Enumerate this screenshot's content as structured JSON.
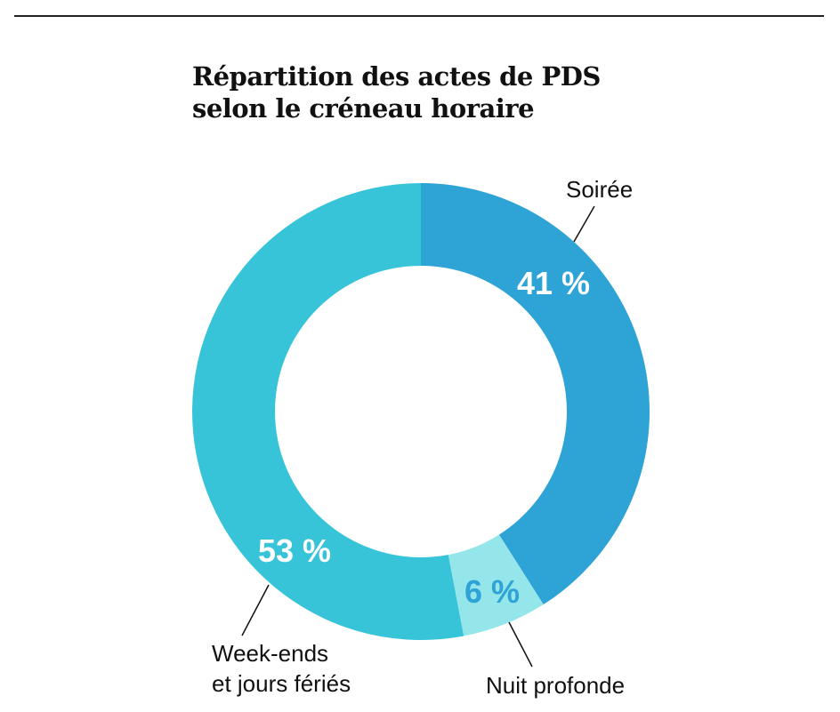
{
  "chart_data": {
    "type": "pie",
    "title": "Répartition des actes de PDS",
    "subtitle": "selon le créneau horaire",
    "slices": [
      {
        "name": "Soirée",
        "value": 41,
        "label": "41 %",
        "color": "#2ea3d6",
        "label_color": "#ffffff"
      },
      {
        "name": "Nuit profonde",
        "value": 6,
        "label": "6 %",
        "color": "#95e6ea",
        "label_color": "#2ea3d6"
      },
      {
        "name": "Week-ends et jours fériés",
        "name_lines": [
          "Week-ends",
          "et jours fériés"
        ],
        "value": 53,
        "label": "53 %",
        "color": "#38c4d8",
        "label_color": "#ffffff"
      }
    ]
  }
}
